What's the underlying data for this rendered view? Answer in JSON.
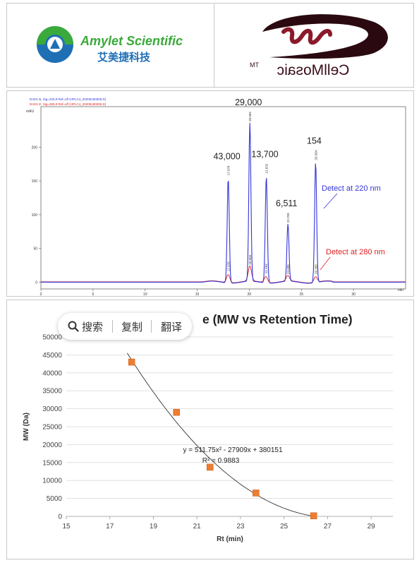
{
  "logos": {
    "left": {
      "name": "Amylet Scientific",
      "name_cn": "艾美捷科技",
      "color_green": "#3aaa3a",
      "color_blue": "#1f6fb5"
    },
    "right": {
      "name": "CellMosaic",
      "tm": "TM",
      "color": "#3a0d18"
    }
  },
  "hplc": {
    "legend": [
      "DAD1 B, Sig=220,8 Ref=off (HPLC4_20205180006.D)",
      "DAD1 E, Sig=280,8 Ref=off (HPLC4_20205180006.D)"
    ],
    "y_unit": "mAU",
    "x_unit": "min",
    "annotations": [
      "Detect at 220 nm",
      "Detect at 280 nm"
    ],
    "colors": {
      "blue": "#3535d8",
      "red": "#e02020"
    },
    "chart_data": {
      "type": "line",
      "x_range": [
        0,
        35
      ],
      "y_range": [
        -10,
        260
      ],
      "x_ticks": [
        0,
        5,
        10,
        15,
        20,
        25,
        30
      ],
      "y_ticks": [
        0,
        50,
        100,
        150,
        200
      ],
      "peaks": [
        {
          "mw": "43,000",
          "rt": 17.978,
          "rt_label": "17.978",
          "height": 155,
          "rt280": 17.976,
          "rt280_label": "17.976",
          "height280": 12
        },
        {
          "mw": "29,000",
          "rt": 20.055,
          "rt_label": "20.055",
          "height": 235,
          "rt280": 20.056,
          "rt280_label": "20.056",
          "height280": 22
        },
        {
          "mw": "13,700",
          "rt": 21.632,
          "rt_label": "21.632",
          "height": 158,
          "rt280": 21.594,
          "rt280_label": "21.594",
          "height280": 9
        },
        {
          "mw": "6,511",
          "rt": 23.709,
          "rt_label": "23.709",
          "height": 85,
          "rt280": 23.695,
          "rt280_label": "23.695",
          "height280": 8
        },
        {
          "mw": "154",
          "rt": 26.364,
          "rt_label": "26.364",
          "height": 178,
          "rt280": 26.365,
          "rt280_label": "26.365",
          "height280": 8
        }
      ]
    }
  },
  "calibration": {
    "title_visible": "e (MW vs Retention Time)",
    "xlabel": "Rt (min)",
    "ylabel": "MW (Da)",
    "equation": "y = 511.75x² - 27909x + 380151",
    "r2": "R² = 0.9883",
    "marker_color": "#ed7d31",
    "chart_data": {
      "type": "scatter",
      "x": [
        18.0,
        20.06,
        21.6,
        23.71,
        26.36
      ],
      "y": [
        43000,
        29000,
        13700,
        6511,
        154
      ],
      "xlim": [
        15,
        30
      ],
      "ylim": [
        0,
        50000
      ],
      "x_ticks": [
        15,
        17,
        19,
        21,
        23,
        25,
        27,
        29
      ],
      "y_ticks": [
        0,
        5000,
        10000,
        15000,
        20000,
        25000,
        30000,
        35000,
        40000,
        45000,
        50000
      ],
      "trendline": {
        "type": "polynomial",
        "a": 511.75,
        "b": -27909,
        "c": 380151
      }
    }
  },
  "popup": {
    "search": "搜索",
    "copy": "复制",
    "translate": "翻译"
  }
}
